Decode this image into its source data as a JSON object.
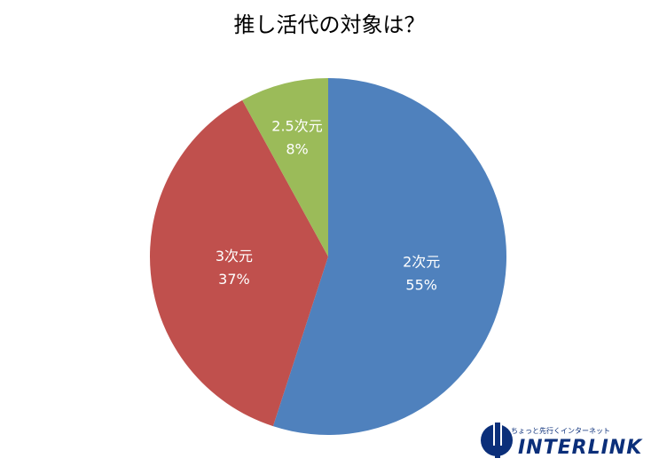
{
  "chart_data": {
    "type": "pie",
    "title": "推し活代の対象は？",
    "categories": [
      "2次元",
      "3次元",
      "2.5次元"
    ],
    "values": [
      55,
      37,
      8
    ],
    "value_labels": [
      "55%",
      "37%",
      "8%"
    ],
    "colors": [
      "#4f81bd",
      "#c0504d",
      "#9bbb59"
    ],
    "start_angle": "12 o'clock",
    "direction": "clockwise",
    "legend": "none"
  },
  "logo": {
    "tagline": "ちょっと先行くインターネット",
    "wordmark": "INTERLINK",
    "color": "#0b2f7a"
  }
}
